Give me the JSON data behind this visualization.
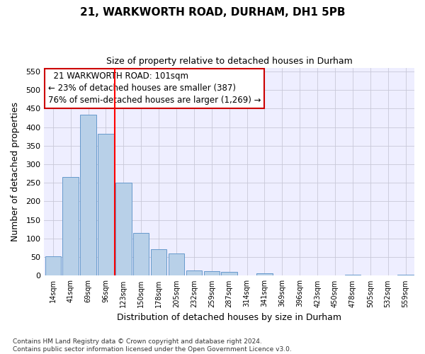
{
  "title_line1": "21, WARKWORTH ROAD, DURHAM, DH1 5PB",
  "title_line2": "Size of property relative to detached houses in Durham",
  "xlabel": "Distribution of detached houses by size in Durham",
  "ylabel": "Number of detached properties",
  "bar_color": "#b8d0e8",
  "bar_edge_color": "#6699cc",
  "grid_color": "#c8c8d8",
  "bg_color": "#eeeeff",
  "categories": [
    "14sqm",
    "41sqm",
    "69sqm",
    "96sqm",
    "123sqm",
    "150sqm",
    "178sqm",
    "205sqm",
    "232sqm",
    "259sqm",
    "287sqm",
    "314sqm",
    "341sqm",
    "369sqm",
    "396sqm",
    "423sqm",
    "450sqm",
    "478sqm",
    "505sqm",
    "532sqm",
    "559sqm"
  ],
  "values": [
    52,
    265,
    433,
    382,
    250,
    115,
    72,
    60,
    15,
    13,
    10,
    0,
    6,
    0,
    0,
    0,
    0,
    2,
    0,
    0,
    2
  ],
  "ylim": [
    0,
    560
  ],
  "yticks": [
    0,
    50,
    100,
    150,
    200,
    250,
    300,
    350,
    400,
    450,
    500,
    550
  ],
  "red_line_x": 3.5,
  "annotation_text": "  21 WARKWORTH ROAD: 101sqm  \n← 23% of detached houses are smaller (387)\n76% of semi-detached houses are larger (1,269) →",
  "annotation_box_color": "#ffffff",
  "annotation_box_edge": "#cc0000",
  "footnote": "Contains HM Land Registry data © Crown copyright and database right 2024.\nContains public sector information licensed under the Open Government Licence v3.0."
}
